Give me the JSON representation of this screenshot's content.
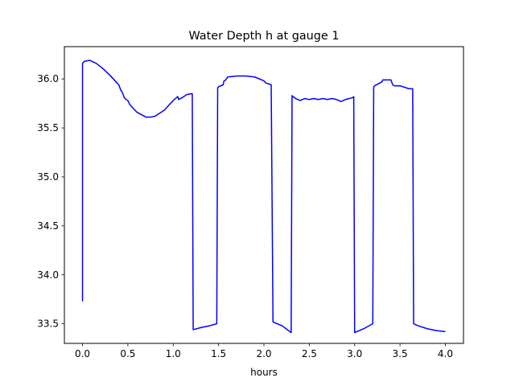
{
  "chart_data": {
    "type": "line",
    "title": "Water Depth h at gauge 1",
    "xlabel": "hours",
    "ylabel": "",
    "xlim": [
      -0.2,
      4.2
    ],
    "ylim": [
      33.3,
      36.33
    ],
    "grid": false,
    "x_ticks": [
      0.0,
      0.5,
      1.0,
      1.5,
      2.0,
      2.5,
      3.0,
      3.5,
      4.0
    ],
    "x_tick_labels": [
      "0.0",
      "0.5",
      "1.0",
      "1.5",
      "2.0",
      "2.5",
      "3.0",
      "3.5",
      "4.0"
    ],
    "y_ticks": [
      33.5,
      34.0,
      34.5,
      35.0,
      35.5,
      36.0
    ],
    "y_tick_labels": [
      "33.5",
      "34.0",
      "34.5",
      "35.0",
      "35.5",
      "36.0"
    ],
    "colors": {
      "line": "#0000ff"
    },
    "series": [
      {
        "x": [
          0.0,
          0.0,
          0.02,
          0.08,
          0.15,
          0.22,
          0.3,
          0.38,
          0.4,
          0.42,
          0.44,
          0.46,
          0.48,
          0.5,
          0.52,
          0.6,
          0.7,
          0.75,
          0.8,
          0.9,
          1.0,
          1.05,
          1.06,
          1.1,
          1.15,
          1.2,
          1.21,
          1.22,
          1.3,
          1.4,
          1.48,
          1.49,
          1.5,
          1.55,
          1.56,
          1.58,
          1.6,
          1.7,
          1.8,
          1.9,
          2.0,
          2.02,
          2.08,
          2.1,
          2.12,
          2.2,
          2.3,
          2.31,
          2.32,
          2.35,
          2.4,
          2.45,
          2.5,
          2.55,
          2.6,
          2.65,
          2.7,
          2.75,
          2.8,
          2.85,
          2.9,
          2.98,
          2.99,
          3.0,
          3.05,
          3.1,
          3.2,
          3.21,
          3.22,
          3.3,
          3.31,
          3.35,
          3.4,
          3.42,
          3.44,
          3.5,
          3.6,
          3.64,
          3.65,
          3.7,
          3.8,
          3.9,
          4.0
        ],
        "y": [
          33.73,
          36.16,
          36.18,
          36.19,
          36.16,
          36.11,
          36.04,
          35.96,
          35.94,
          35.89,
          35.86,
          35.81,
          35.79,
          35.78,
          35.74,
          35.66,
          35.61,
          35.61,
          35.62,
          35.68,
          35.78,
          35.82,
          35.79,
          35.81,
          35.84,
          35.85,
          35.85,
          33.44,
          33.46,
          33.48,
          33.5,
          35.91,
          35.92,
          35.94,
          35.98,
          35.99,
          36.02,
          36.03,
          36.03,
          36.02,
          35.98,
          35.96,
          35.94,
          33.52,
          33.51,
          33.48,
          33.41,
          35.83,
          35.82,
          35.8,
          35.78,
          35.8,
          35.79,
          35.8,
          35.79,
          35.8,
          35.79,
          35.8,
          35.79,
          35.77,
          35.79,
          35.81,
          35.82,
          33.41,
          33.43,
          33.45,
          33.5,
          35.92,
          35.93,
          35.97,
          35.99,
          35.99,
          35.99,
          35.94,
          35.93,
          35.93,
          35.9,
          35.9,
          33.5,
          33.48,
          33.45,
          33.43,
          33.42
        ]
      }
    ]
  }
}
